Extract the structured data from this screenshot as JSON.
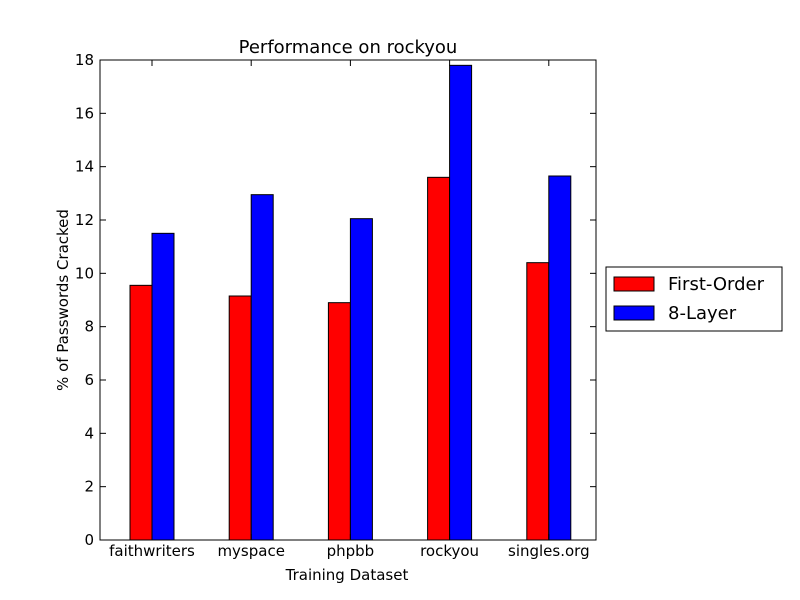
{
  "chart_data": {
    "type": "bar",
    "title": "Performance on rockyou",
    "xlabel": "Training Dataset",
    "ylabel": "% of Passwords Cracked",
    "categories": [
      "faithwriters",
      "myspace",
      "phpbb",
      "rockyou",
      "singles.org"
    ],
    "series": [
      {
        "name": "First-Order",
        "color": "#ff0000",
        "values": [
          9.55,
          9.15,
          8.9,
          13.6,
          10.4
        ]
      },
      {
        "name": "8-Layer",
        "color": "#0000ff",
        "values": [
          11.5,
          12.95,
          12.05,
          17.8,
          13.65
        ]
      }
    ],
    "ylim": [
      0,
      18
    ],
    "yticks": [
      0,
      2,
      4,
      6,
      8,
      10,
      12,
      14,
      16,
      18
    ],
    "grid": false,
    "legend_position": "outside-right"
  }
}
